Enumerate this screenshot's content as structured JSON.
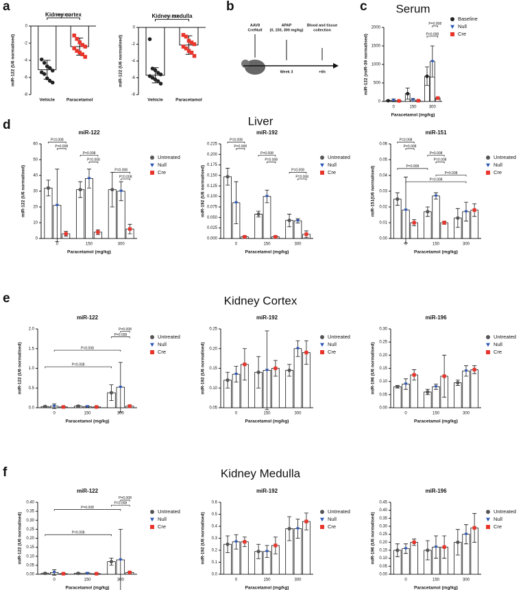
{
  "panel_letters": [
    "a",
    "b",
    "c",
    "d",
    "e",
    "f"
  ],
  "headings": [
    "Liver",
    "Kidney Cortex",
    "Kidney Medulla"
  ],
  "diagram": {
    "vector": "AAV8",
    "vector_type": "Cre/Null",
    "drug": "APAP",
    "doses": "(0, 150, 300 mg/kg)",
    "end": "Blood and tissue",
    "end2": "collection",
    "time1": "Week 3",
    "time2": "+6h"
  },
  "chart_data": [
    {
      "type": "bar",
      "title": "Kidney cortex",
      "ylabel": "miR-122 (U6 normalised)",
      "categories": [
        "Vehicle",
        "Paracetamol"
      ],
      "values": [
        -5.1,
        -2.4
      ],
      "errors": [
        1.1,
        1.0
      ],
      "colors": [
        "#222222",
        "#e8352b"
      ],
      "points": [
        [
          -3.9,
          -4.3,
          -4.7,
          -4.9,
          -5.2,
          -5.4,
          -5.6,
          -6.1,
          -6.4,
          -6.6
        ],
        [
          -1.1,
          -1.5,
          -1.9,
          -2.2,
          -2.4,
          -2.6,
          -2.9,
          -3.1,
          -3.3,
          -3.6
        ]
      ],
      "ylim": [
        -8,
        0
      ],
      "yticks": [
        0,
        -2,
        -4,
        -6,
        -8
      ],
      "annotations": [
        "P=0.0002"
      ]
    },
    {
      "type": "bar",
      "title": "Kidney medulla",
      "ylabel": "miR-122 (U6 normalised)",
      "categories": [
        "Vehicle",
        "Paracetamol"
      ],
      "values": [
        -5.7,
        -2.1
      ],
      "errors": [
        0.9,
        1.1
      ],
      "colors": [
        "#222222",
        "#e8352b"
      ],
      "points": [
        [
          -1.4,
          -4.9,
          -5.1,
          -5.4,
          -5.6,
          -5.8,
          -6.0,
          -6.2,
          -6.4,
          -6.7
        ],
        [
          -0.9,
          -1.1,
          -1.6,
          -1.8,
          -2.0,
          -2.3,
          -2.5,
          -2.8,
          -3.0,
          -3.4
        ]
      ],
      "ylim": [
        -8,
        0
      ],
      "yticks": [
        0,
        -2,
        -4,
        -6,
        -8
      ],
      "annotations": [
        "P=0.0005"
      ]
    },
    {
      "type": "bar",
      "title": "Serum",
      "ylabel": "miR-122 (miR-39 normalised)",
      "xlabel": "Paracetamol (mg/kg)",
      "categories": [
        "0",
        "150",
        "300"
      ],
      "series": [
        {
          "name": "Baseline",
          "color": "#222222",
          "values": [
            20,
            210,
            680
          ],
          "errors": [
            15,
            150,
            250
          ]
        },
        {
          "name": "Null",
          "color": "#2a56b8",
          "values": [
            30,
            40,
            1080
          ],
          "errors": [
            40,
            40,
            420
          ]
        },
        {
          "name": "Cre",
          "color": "#e8352b",
          "values": [
            15,
            20,
            90
          ],
          "errors": [
            10,
            20,
            30
          ]
        }
      ],
      "ylim": [
        0,
        2000
      ],
      "yticks": [
        0,
        500,
        1000,
        1500,
        2000
      ],
      "annotations": [
        "P=0.008",
        "P=0.008"
      ]
    },
    {
      "type": "bar",
      "title": "miR-122",
      "ylabel": "miR-122 (U6 normalised)",
      "xlabel": "Paracetamol (mg/kg)",
      "categories": [
        "0",
        "150",
        "300"
      ],
      "series": [
        {
          "name": "Untreated",
          "color": "#555555",
          "values": [
            32,
            31,
            31
          ],
          "errors": [
            5,
            5,
            11
          ]
        },
        {
          "name": "Null",
          "color": "#2a56b8",
          "values": [
            21,
            38,
            30
          ],
          "errors": [
            23,
            6,
            6
          ]
        },
        {
          "name": "Cre",
          "color": "#e8352b",
          "values": [
            3,
            4,
            6
          ],
          "errors": [
            1.5,
            1.5,
            3
          ]
        }
      ],
      "ylim": [
        0,
        60
      ],
      "yticks": [
        0,
        10,
        20,
        30,
        40,
        50,
        60
      ],
      "annotations": [
        "P=0.008",
        "P=0.008",
        "P=0.008",
        "P=0.008",
        "P=0.008",
        "P=0.008"
      ]
    },
    {
      "type": "bar",
      "title": "miR-192",
      "ylabel": "miR-192 (U6 normalised)",
      "xlabel": "Paracetamol (mg/kg)",
      "categories": [
        "0",
        "150",
        "300"
      ],
      "series": [
        {
          "name": "Untreated",
          "color": "#555555",
          "values": [
            0.147,
            0.058,
            0.043
          ],
          "errors": [
            0.02,
            0.007,
            0.015
          ]
        },
        {
          "name": "Null",
          "color": "#2a56b8",
          "values": [
            0.085,
            0.1,
            0.042
          ],
          "errors": [
            0.05,
            0.015,
            0.005
          ]
        },
        {
          "name": "Cre",
          "color": "#e8352b",
          "values": [
            0.004,
            0.004,
            0.01
          ],
          "errors": [
            0.002,
            0.002,
            0.008
          ]
        }
      ],
      "ylim": [
        0,
        0.225
      ],
      "yticks": [
        {
          "value": 0,
          "label": "0.000"
        },
        {
          "value": 0.025,
          "label": "0.025"
        },
        {
          "value": 0.05,
          "label": "0.050"
        },
        {
          "value": 0.075,
          "label": "0.075"
        },
        {
          "value": 0.1,
          "label": "0.100"
        },
        {
          "value": 0.125,
          "label": "0.125"
        },
        {
          "value": 0.15,
          "label": "0.150"
        },
        {
          "value": 0.175,
          "label": "0.175"
        },
        {
          "value": 0.2,
          "label": "0.200"
        },
        {
          "value": 0.225,
          "label": "0.225"
        }
      ],
      "annotations": [
        "P=0.008",
        "P=0.008",
        "P=0.008",
        "P=0.008",
        "P=0.008",
        "P=0.008"
      ]
    },
    {
      "type": "bar",
      "title": "miR-151",
      "ylabel": "miR-151(U6 normalised)",
      "xlabel": "Paracetamol (mg/kg)",
      "categories": [
        "0",
        "150",
        "300"
      ],
      "series": [
        {
          "name": "Untreated",
          "color": "#555555",
          "values": [
            0.025,
            0.017,
            0.013
          ],
          "errors": [
            0.004,
            0.003,
            0.006
          ]
        },
        {
          "name": "Null",
          "color": "#2a56b8",
          "values": [
            0.018,
            0.027,
            0.017
          ],
          "errors": [
            0.021,
            0.002,
            0.006
          ]
        },
        {
          "name": "Cre",
          "color": "#e8352b",
          "values": [
            0.01,
            0.01,
            0.018
          ],
          "errors": [
            0.002,
            0.001,
            0.004
          ]
        }
      ],
      "ylim": [
        0,
        0.06
      ],
      "yticks": [
        {
          "value": 0,
          "label": "0.00"
        },
        {
          "value": 0.01,
          "label": "0.01"
        },
        {
          "value": 0.02,
          "label": "0.02"
        },
        {
          "value": 0.03,
          "label": "0.03"
        },
        {
          "value": 0.04,
          "label": "0.04"
        },
        {
          "value": 0.05,
          "label": "0.05"
        },
        {
          "value": 0.06,
          "label": "0.06"
        }
      ],
      "annotations": [
        "P=0.008",
        "P=0.008",
        "P=0.008",
        "P=0.008",
        "P=0.008",
        "P=0.008",
        "P=0.008"
      ]
    },
    {
      "type": "bar",
      "title": "miR-122",
      "ylabel": "miR-122 (U6 normalised)",
      "xlabel": "Paracetamol (mg/kg)",
      "categories": [
        "0",
        "150",
        "300"
      ],
      "series": [
        {
          "name": "Untreated",
          "color": "#555555",
          "values": [
            0.03,
            0.04,
            0.38
          ],
          "errors": [
            0.02,
            0.02,
            0.2
          ]
        },
        {
          "name": "Null",
          "color": "#2a56b8",
          "values": [
            0.04,
            0.03,
            0.52
          ],
          "errors": [
            0.06,
            0.02,
            0.63
          ]
        },
        {
          "name": "Cre",
          "color": "#e8352b",
          "values": [
            0.02,
            0.02,
            0.04
          ],
          "errors": [
            0.01,
            0.01,
            0.03
          ]
        }
      ],
      "ylim": [
        0,
        2
      ],
      "yticks": [
        {
          "value": 0,
          "label": "0.0"
        },
        {
          "value": 0.5,
          "label": "0.5"
        },
        {
          "value": 1,
          "label": "1.0"
        },
        {
          "value": 1.5,
          "label": "1.5"
        },
        {
          "value": 2,
          "label": "2.0"
        }
      ],
      "annotations": [
        "P=0.008",
        "P=0.008",
        "P=0.008",
        "P=0.008"
      ]
    },
    {
      "type": "bar",
      "title": "miR-192",
      "ylabel": "miR-192 (U6 normalised)",
      "xlabel": "Paracetamol (mg/kg)",
      "categories": [
        "0",
        "150",
        "300"
      ],
      "series": [
        {
          "name": "Untreated",
          "color": "#555555",
          "values": [
            0.12,
            0.14,
            0.145
          ],
          "errors": [
            0.02,
            0.04,
            0.015
          ]
        },
        {
          "name": "Null",
          "color": "#2a56b8",
          "values": [
            0.135,
            0.145,
            0.2
          ],
          "errors": [
            0.02,
            0.1,
            0.02
          ]
        },
        {
          "name": "Cre",
          "color": "#e8352b",
          "values": [
            0.16,
            0.15,
            0.19
          ],
          "errors": [
            0.04,
            0.02,
            0.03
          ]
        }
      ],
      "ylim": [
        0.05,
        0.25
      ],
      "yticks": [
        {
          "value": 0.05,
          "label": "0.05"
        },
        {
          "value": 0.1,
          "label": "0.10"
        },
        {
          "value": 0.15,
          "label": "0.15"
        },
        {
          "value": 0.2,
          "label": "0.20"
        },
        {
          "value": 0.25,
          "label": "0.25"
        }
      ]
    },
    {
      "type": "bar",
      "title": "miR-196",
      "ylabel": "miR-196 (U6 normalised)",
      "xlabel": "Paracetamol (mg/kg)",
      "categories": [
        "0",
        "150",
        "300"
      ],
      "series": [
        {
          "name": "Untreated",
          "color": "#555555",
          "values": [
            0.08,
            0.06,
            0.095
          ],
          "errors": [
            0.005,
            0.01,
            0.01
          ]
        },
        {
          "name": "Null",
          "color": "#2a56b8",
          "values": [
            0.09,
            0.08,
            0.14
          ],
          "errors": [
            0.02,
            0.01,
            0.02
          ]
        },
        {
          "name": "Cre",
          "color": "#e8352b",
          "values": [
            0.125,
            0.12,
            0.145
          ],
          "errors": [
            0.02,
            0.08,
            0.015
          ]
        }
      ],
      "ylim": [
        0,
        0.3
      ],
      "yticks": [
        {
          "value": 0,
          "label": "0.00"
        },
        {
          "value": 0.05,
          "label": "0.05"
        },
        {
          "value": 0.1,
          "label": "0.10"
        },
        {
          "value": 0.15,
          "label": "0.15"
        },
        {
          "value": 0.2,
          "label": "0.20"
        },
        {
          "value": 0.25,
          "label": "0.25"
        },
        {
          "value": 0.3,
          "label": "0.30"
        }
      ]
    },
    {
      "type": "bar",
      "title": "miR-122",
      "ylabel": "miR-122 (U6 normalised)",
      "xlabel": "Paracetamol (mg/kg)",
      "categories": [
        "0",
        "150",
        "300"
      ],
      "series": [
        {
          "name": "Untreated",
          "color": "#555555",
          "values": [
            0.005,
            0.005,
            0.07
          ],
          "errors": [
            0.003,
            0.003,
            0.02
          ]
        },
        {
          "name": "Null",
          "color": "#2a56b8",
          "values": [
            0.01,
            0.005,
            0.08
          ],
          "errors": [
            0.015,
            0.005,
            0.17
          ]
        },
        {
          "name": "Cre",
          "color": "#e8352b",
          "values": [
            0.003,
            0.003,
            0.01
          ],
          "errors": [
            0.002,
            0.002,
            0.005
          ]
        }
      ],
      "ylim": [
        0,
        0.4
      ],
      "yticks": [
        {
          "value": 0,
          "label": "0.00"
        },
        {
          "value": 0.05,
          "label": "0.05"
        },
        {
          "value": 0.1,
          "label": "0.10"
        },
        {
          "value": 0.15,
          "label": "0.15"
        },
        {
          "value": 0.2,
          "label": "0.20"
        },
        {
          "value": 0.25,
          "label": "0.25"
        },
        {
          "value": 0.3,
          "label": "0.30"
        },
        {
          "value": 0.35,
          "label": "0.35"
        },
        {
          "value": 0.4,
          "label": "0.40"
        }
      ],
      "annotations": [
        "P=0.008",
        "P=0.008",
        "P=0.008",
        "P=0.008"
      ]
    },
    {
      "type": "bar",
      "title": "miR-192",
      "ylabel": "miR-192 (U6 normalised)",
      "xlabel": "Paracetamol (mg/kg)",
      "categories": [
        "0",
        "150",
        "300"
      ],
      "series": [
        {
          "name": "Untreated",
          "color": "#555555",
          "values": [
            0.25,
            0.19,
            0.38
          ],
          "errors": [
            0.07,
            0.06,
            0.1
          ]
        },
        {
          "name": "Null",
          "color": "#2a56b8",
          "values": [
            0.27,
            0.19,
            0.38
          ],
          "errors": [
            0.06,
            0.05,
            0.08
          ]
        },
        {
          "name": "Cre",
          "color": "#e8352b",
          "values": [
            0.27,
            0.24,
            0.44
          ],
          "errors": [
            0.04,
            0.07,
            0.07
          ]
        }
      ],
      "ylim": [
        0,
        0.6
      ],
      "yticks": [
        {
          "value": 0,
          "label": "0.0"
        },
        {
          "value": 0.1,
          "label": "0.1"
        },
        {
          "value": 0.2,
          "label": "0.2"
        },
        {
          "value": 0.3,
          "label": "0.3"
        },
        {
          "value": 0.4,
          "label": "0.4"
        },
        {
          "value": 0.5,
          "label": "0.5"
        },
        {
          "value": 0.6,
          "label": "0.6"
        }
      ]
    },
    {
      "type": "bar",
      "title": "miR-196",
      "ylabel": "miR-196 (U6 normalised)",
      "xlabel": "Paracetamol (mg/kg)",
      "categories": [
        "0",
        "150",
        "300"
      ],
      "series": [
        {
          "name": "Untreated",
          "color": "#555555",
          "values": [
            0.15,
            0.15,
            0.2
          ],
          "errors": [
            0.04,
            0.06,
            0.08
          ]
        },
        {
          "name": "Null",
          "color": "#2a56b8",
          "values": [
            0.16,
            0.17,
            0.25
          ],
          "errors": [
            0.03,
            0.07,
            0.06
          ]
        },
        {
          "name": "Cre",
          "color": "#e8352b",
          "values": [
            0.2,
            0.17,
            0.29
          ],
          "errors": [
            0.02,
            0.07,
            0.09
          ]
        }
      ],
      "ylim": [
        0,
        0.45
      ],
      "yticks": [
        {
          "value": 0,
          "label": "0.00"
        },
        {
          "value": 0.05,
          "label": "0.05"
        },
        {
          "value": 0.1,
          "label": "0.10"
        },
        {
          "value": 0.15,
          "label": "0.15"
        },
        {
          "value": 0.2,
          "label": "0.20"
        },
        {
          "value": 0.25,
          "label": "0.25"
        },
        {
          "value": 0.3,
          "label": "0.30"
        },
        {
          "value": 0.35,
          "label": "0.35"
        },
        {
          "value": 0.4,
          "label": "0.40"
        },
        {
          "value": 0.45,
          "label": "0.45"
        }
      ]
    }
  ]
}
